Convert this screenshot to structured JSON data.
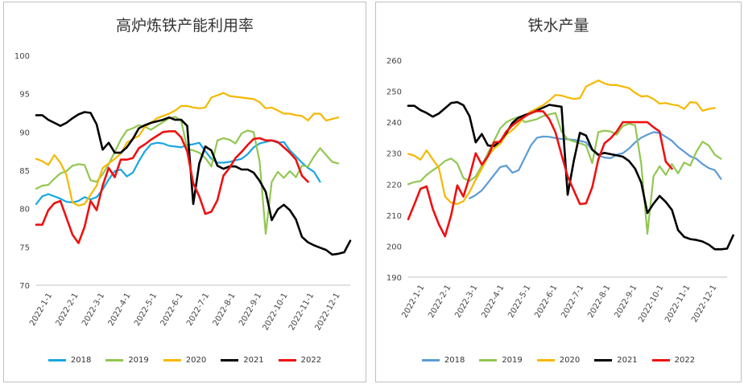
{
  "chart_data": [
    {
      "type": "line",
      "title": "高炉炼铁产能利用率",
      "ylim": [
        70,
        100
      ],
      "yticks": [
        70,
        75,
        80,
        85,
        90,
        95,
        100
      ],
      "grid": false,
      "legend": "bottom",
      "x_labels": [
        "2022-1-1",
        "2022-2-1",
        "2022-3-1",
        "2022-4-1",
        "2022-5-1",
        "2022-6-1",
        "2022-7-1",
        "2022-8-1",
        "2022-9-1",
        "2022-10-1",
        "2022-11-1",
        "2022-12-1"
      ],
      "series": [
        {
          "name": "2018",
          "color": "#1aa6e0",
          "values": [
            80.6,
            81.6,
            81.9,
            81.6,
            81.3,
            80.9,
            80.8,
            81.0,
            81.5,
            81.2,
            81.5,
            82.5,
            83.8,
            84.9,
            85.1,
            84.2,
            84.7,
            86.2,
            87.5,
            88.4,
            88.6,
            88.5,
            88.2,
            88.1,
            88.0,
            88.3,
            88.4,
            88.6,
            87.5,
            86.5,
            86.0,
            86.0,
            86.1,
            86.3,
            86.5,
            87.1,
            88.0,
            88.5,
            88.7,
            88.9,
            88.6,
            88.7,
            87.6,
            86.8,
            86.0,
            85.3,
            84.8,
            83.5
          ]
        },
        {
          "name": "2019",
          "color": "#92c751",
          "values": [
            82.6,
            83.0,
            83.1,
            83.9,
            84.6,
            84.9,
            85.6,
            85.8,
            85.7,
            83.7,
            83.5,
            84.5,
            85.8,
            87.4,
            89.0,
            90.2,
            90.5,
            90.9,
            90.7,
            90.3,
            90.8,
            91.3,
            91.8,
            92.0,
            91.5,
            87.8,
            87.6,
            87.3,
            86.6,
            85.5,
            88.9,
            89.2,
            89.0,
            88.5,
            89.8,
            90.2,
            90.0,
            86.1,
            76.7,
            83.5,
            84.8,
            84.0,
            84.9,
            84.1,
            85.6,
            85.5,
            86.8,
            87.9,
            87.0,
            86.1,
            85.9
          ]
        },
        {
          "name": "2020",
          "color": "#f5b800",
          "values": [
            86.5,
            86.2,
            85.7,
            87.0,
            86.0,
            84.4,
            80.8,
            80.4,
            80.6,
            81.8,
            83.0,
            85.3,
            85.9,
            86.5,
            87.2,
            88.6,
            89.1,
            89.5,
            90.7,
            91.2,
            91.8,
            92.1,
            92.4,
            92.8,
            93.4,
            93.4,
            93.2,
            93.1,
            93.2,
            94.5,
            94.8,
            95.1,
            94.7,
            94.6,
            94.5,
            94.4,
            94.3,
            93.9,
            93.1,
            93.2,
            92.8,
            92.4,
            92.4,
            92.2,
            92.1,
            91.5,
            92.4,
            92.4,
            91.5,
            91.7,
            91.9
          ]
        },
        {
          "name": "2021",
          "color": "#000000",
          "values": [
            92.2,
            92.2,
            91.6,
            91.2,
            90.8,
            91.2,
            91.8,
            92.3,
            92.6,
            92.5,
            91.0,
            87.7,
            88.6,
            87.3,
            87.3,
            88.0,
            89.1,
            90.5,
            90.9,
            91.2,
            91.4,
            91.6,
            91.9,
            91.6,
            91.6,
            90.8,
            80.6,
            85.9,
            88.1,
            87.6,
            85.6,
            85.2,
            85.5,
            85.5,
            85.1,
            85.1,
            84.7,
            83.6,
            82.2,
            78.5,
            79.9,
            80.5,
            79.8,
            78.6,
            76.3,
            75.6,
            75.2,
            74.9,
            74.6,
            74.0,
            74.1,
            74.3,
            75.8
          ]
        },
        {
          "name": "2022",
          "color": "#ee1111",
          "values": [
            77.9,
            77.9,
            79.8,
            80.7,
            81.0,
            78.8,
            76.6,
            75.5,
            77.6,
            81.0,
            79.8,
            83.0,
            85.3,
            84.1,
            86.4,
            86.4,
            86.6,
            87.9,
            88.4,
            89.0,
            89.5,
            90.0,
            90.1,
            90.1,
            89.3,
            87.5,
            83.3,
            81.6,
            79.3,
            79.6,
            81.1,
            84.3,
            85.3,
            86.6,
            87.4,
            88.3,
            89.1,
            89.2,
            88.9,
            88.9,
            88.7,
            88.0,
            87.3,
            86.4,
            84.3,
            83.5
          ]
        }
      ]
    },
    {
      "type": "line",
      "title": "铁水产量",
      "ylim": [
        190,
        260
      ],
      "yticks": [
        190,
        200,
        210,
        220,
        230,
        240,
        250,
        260
      ],
      "grid": false,
      "legend": "bottom",
      "x_labels": [
        "2022-1-1",
        "2022-2-1",
        "2022-3-1",
        "2022-4-1",
        "2022-5-1",
        "2022-6-1",
        "2022-7-1",
        "2022-8-1",
        "2022-9-1",
        "2022-10-1",
        "2022-11-1",
        "2022-12-1"
      ],
      "series": [
        {
          "name": "2018",
          "color": "#5b9bd5",
          "values": [
            null,
            null,
            null,
            null,
            null,
            null,
            null,
            null,
            null,
            null,
            215.4,
            216.5,
            218.0,
            220.5,
            223.0,
            225.5,
            226.0,
            223.7,
            224.5,
            228.5,
            232.5,
            235.0,
            235.4,
            235.3,
            234.9,
            234.6,
            234.5,
            234.3,
            234.0,
            233.5,
            231.0,
            229.3,
            228.6,
            228.4,
            229.5,
            230.0,
            231.5,
            233.5,
            235.0,
            236.0,
            236.8,
            236.5,
            235.3,
            234.0,
            232.0,
            230.5,
            229.0,
            228.2,
            226.5,
            225.2,
            224.5,
            221.7
          ]
        },
        {
          "name": "2019",
          "color": "#92c751",
          "values": [
            220.0,
            220.7,
            221.0,
            223.0,
            224.5,
            225.8,
            227.5,
            228.3,
            226.7,
            222.0,
            221.0,
            222.5,
            226.0,
            230.0,
            234.0,
            238.0,
            240.0,
            241.0,
            241.7,
            240.0,
            240.5,
            241.0,
            242.0,
            242.5,
            243.0,
            237.0,
            234.5,
            233.8,
            233.2,
            232.5,
            226.8,
            236.8,
            237.3,
            237.0,
            236.0,
            238.8,
            239.5,
            239.0,
            226.5,
            204.0,
            222.5,
            225.8,
            223.0,
            226.5,
            223.5,
            227.0,
            226.0,
            230.5,
            233.7,
            232.5,
            229.5,
            228.2
          ]
        },
        {
          "name": "2020",
          "color": "#f5b800",
          "values": [
            229.8,
            229.2,
            227.9,
            230.9,
            228.0,
            225.2,
            216.0,
            214.0,
            213.6,
            214.5,
            217.5,
            221.5,
            225.0,
            229.0,
            231.5,
            233.0,
            236.0,
            237.5,
            239.5,
            242.0,
            243.5,
            244.5,
            245.5,
            247.0,
            248.8,
            248.6,
            248.0,
            247.5,
            247.8,
            251.5,
            252.5,
            253.5,
            252.5,
            252.0,
            252.0,
            251.5,
            251.0,
            249.5,
            248.3,
            248.5,
            247.5,
            246.0,
            246.2,
            245.7,
            245.4,
            244.3,
            246.5,
            246.3,
            243.7,
            244.3,
            244.6
          ]
        },
        {
          "name": "2021",
          "color": "#000000",
          "values": [
            245.3,
            245.3,
            243.9,
            243.0,
            241.8,
            242.8,
            244.5,
            246.2,
            246.5,
            245.5,
            241.9,
            233.5,
            236.2,
            232.5,
            232.3,
            233.9,
            236.5,
            239.8,
            241.5,
            242.3,
            242.9,
            243.8,
            244.7,
            245.6,
            245.3,
            245.0,
            216.6,
            227.5,
            236.6,
            235.7,
            231.2,
            229.5,
            230.1,
            229.7,
            229.3,
            228.9,
            227.5,
            225.0,
            220.5,
            210.7,
            213.7,
            216.2,
            214.3,
            211.7,
            205.2,
            203.0,
            202.3,
            202.0,
            201.5,
            200.5,
            199.0,
            199.0,
            199.2,
            203.5
          ]
        },
        {
          "name": "2022",
          "color": "#ee1111",
          "values": [
            208.7,
            213.5,
            218.5,
            219.3,
            212.0,
            207.0,
            203.2,
            210.0,
            219.6,
            216.0,
            222.5,
            230.0,
            226.3,
            229.0,
            233.5,
            233.7,
            237.0,
            239.0,
            240.5,
            241.8,
            243.0,
            243.6,
            243.5,
            241.0,
            236.8,
            229.5,
            222.5,
            218.0,
            213.6,
            213.8,
            219.0,
            228.0,
            233.2,
            234.8,
            237.0,
            240.0,
            240.0,
            240.0,
            240.0,
            240.0,
            238.4,
            237.0,
            227.3,
            225.0
          ]
        }
      ]
    }
  ]
}
